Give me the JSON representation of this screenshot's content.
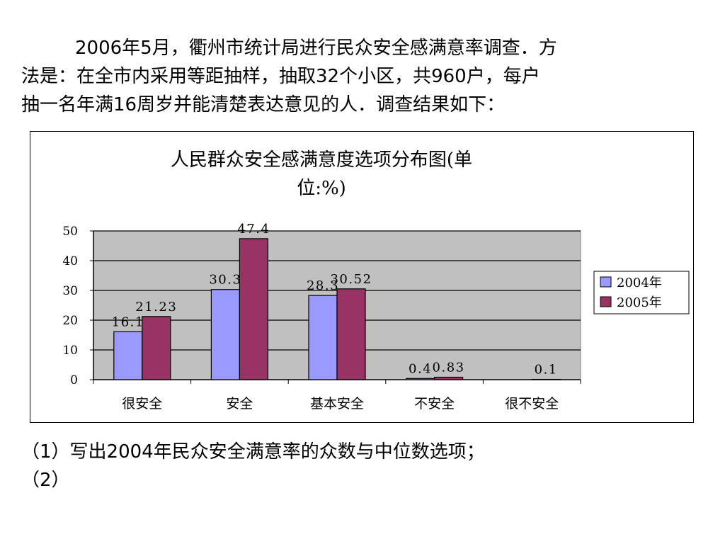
{
  "intro": {
    "lines": [
      "2006年5月，衢州市统计局进行民众安全感满意率调查．方",
      "法是：在全市内采用等距抽样，抽取32个小区，共960户，每户",
      "抽一名年满16周岁并能清楚表达意见的人．调查结果如下："
    ]
  },
  "questions": {
    "lines": [
      "（1）写出2004年民众安全满意率的众数与中位数选项；",
      "（2）"
    ]
  },
  "chart_data": {
    "type": "bar",
    "title": "人民群众安全感满意度选项分布图（单位：%）",
    "title_lines": [
      "人民群众安全感满意度选项分布图(单",
      "位:%)"
    ],
    "categories": [
      "很安全",
      "安全",
      "基本安全",
      "不安全",
      "很不安全"
    ],
    "series": [
      {
        "name": "2004年",
        "values": [
          16.1,
          30.3,
          28.3,
          0.4,
          null
        ],
        "labels": [
          "16.1",
          "30.3",
          "28.3",
          "0.4",
          ""
        ],
        "color": "#9999ff"
      },
      {
        "name": "2005年",
        "values": [
          21.23,
          47.4,
          30.52,
          0.83,
          0.1
        ],
        "labels": [
          "21.23",
          "47.4",
          "30.52",
          "0.83",
          "0.1"
        ],
        "color": "#993366"
      }
    ],
    "ylim": [
      0,
      50
    ],
    "yticks": [
      0,
      10,
      20,
      30,
      40,
      50
    ],
    "grid": true,
    "plot_background": "#c0c0c0",
    "legend_position": "right"
  }
}
